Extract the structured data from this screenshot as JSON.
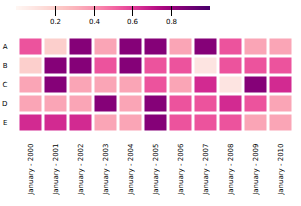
{
  "chart_data": {
    "type": "heatmap",
    "categories": [
      "January - 2000",
      "January - 2001",
      "January - 2002",
      "January - 2003",
      "January - 2004",
      "January - 2005",
      "January - 2006",
      "January - 2007",
      "January - 2008",
      "January - 2009",
      "January - 2010"
    ],
    "rows": [
      "A",
      "B",
      "C",
      "D",
      "E"
    ],
    "values": [
      [
        0.55,
        0.2,
        0.85,
        0.35,
        0.85,
        0.85,
        0.35,
        0.85,
        0.55,
        0.35,
        0.35
      ],
      [
        0.2,
        0.85,
        0.85,
        0.55,
        0.85,
        0.55,
        0.55,
        0.1,
        0.55,
        0.55,
        0.55
      ],
      [
        0.35,
        0.85,
        0.35,
        0.35,
        0.35,
        0.55,
        0.35,
        0.65,
        0.1,
        0.85,
        0.65
      ],
      [
        0.35,
        0.35,
        0.35,
        0.85,
        0.35,
        0.85,
        0.55,
        0.55,
        0.65,
        0.55,
        0.35
      ],
      [
        0.65,
        0.65,
        0.65,
        0.35,
        0.35,
        0.85,
        0.55,
        0.55,
        0.55,
        0.35,
        0.35
      ]
    ],
    "color": "RdPu",
    "colorbar_range": [
      0.0,
      1.0
    ],
    "colorbar_ticks": [
      0.2,
      0.4,
      0.6,
      0.8
    ]
  }
}
